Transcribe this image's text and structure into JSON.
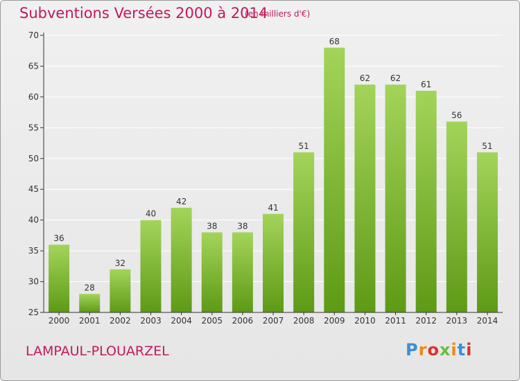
{
  "header": {
    "title": "Subventions Versées 2000 à 2014",
    "unit_note": "(en milliers d'€)"
  },
  "footer": {
    "commune": "LAMPAUL-PLOUARZEL",
    "logo_text": "Proxiti",
    "logo_colors": [
      "#3b8fd6",
      "#e98a1c",
      "#d9342b",
      "#6cbf3c",
      "#e98a1c",
      "#3b8fd6",
      "#d9342b"
    ]
  },
  "colors": {
    "title": "#c2185b",
    "bar_top": "#a3d45a",
    "bar_bottom": "#5e9a16",
    "axis": "#333333",
    "grid": "#ffffff"
  },
  "chart_data": {
    "type": "bar",
    "categories": [
      "2000",
      "2001",
      "2002",
      "2003",
      "2004",
      "2005",
      "2006",
      "2007",
      "2008",
      "2009",
      "2010",
      "2011",
      "2012",
      "2013",
      "2014"
    ],
    "values": [
      36,
      28,
      32,
      40,
      42,
      38,
      38,
      41,
      51,
      68,
      62,
      62,
      61,
      56,
      51
    ],
    "yticks": [
      25,
      30,
      35,
      40,
      45,
      50,
      55,
      60,
      65,
      70
    ],
    "ylim": [
      25,
      70
    ],
    "title": "Subventions Versées 2000 à 2014",
    "ylabel": "",
    "xlabel": "",
    "grid": true,
    "data_labels": true
  }
}
